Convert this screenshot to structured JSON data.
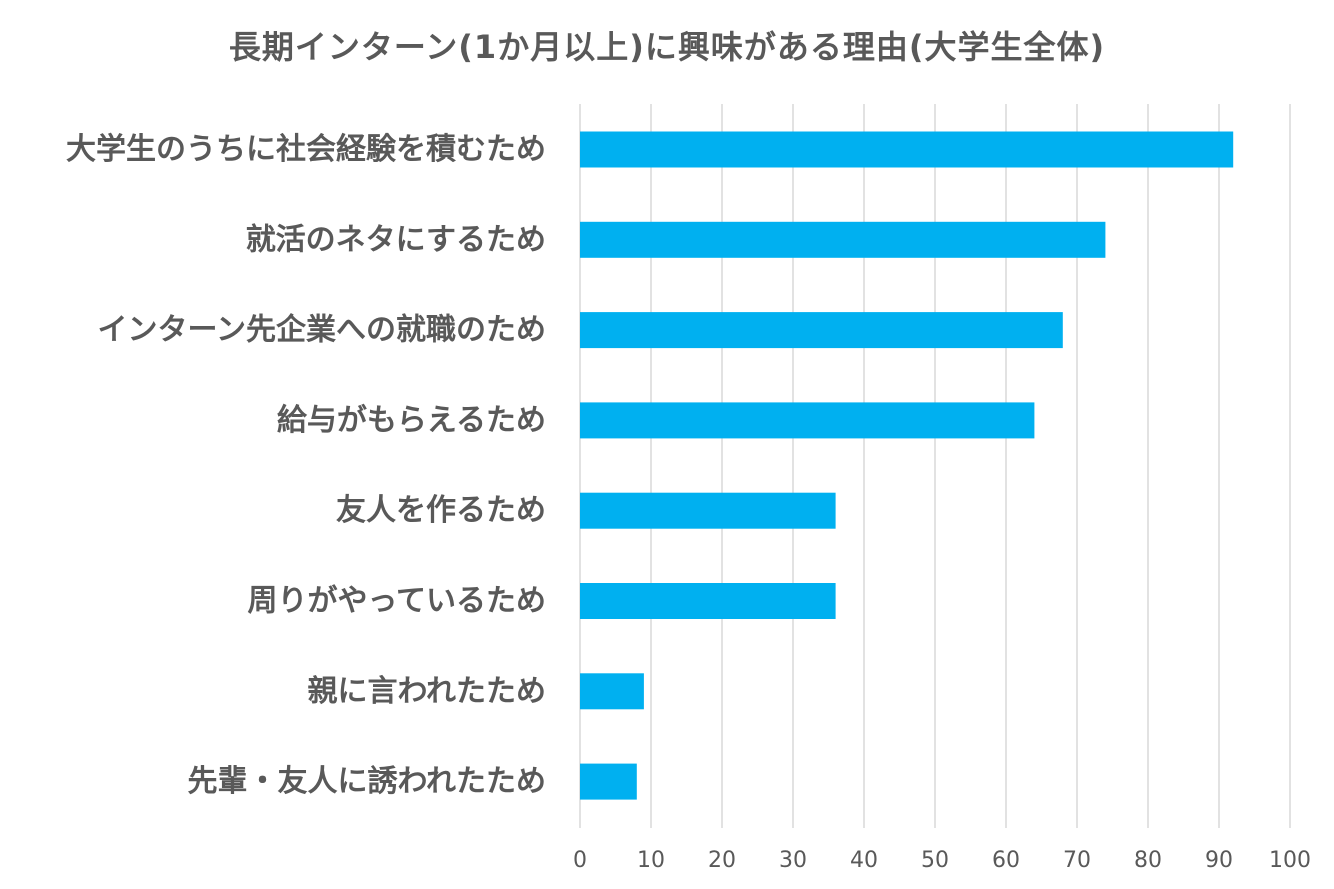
{
  "chart_data": {
    "type": "bar",
    "orientation": "horizontal",
    "title": "長期インターン(1か月以上)に興味がある理由(大学生全体)",
    "categories": [
      "大学生のうちに社会経験を積むため",
      "就活のネタにするため",
      "インターン先企業への就職のため",
      "給与がもらえるため",
      "友人を作るため",
      "周りがやっているため",
      "親に言われたため",
      "先輩・友人に誘われたため"
    ],
    "values": [
      92,
      74,
      68,
      64,
      36,
      36,
      9,
      8
    ],
    "xlim": [
      0,
      100
    ],
    "xticks": [
      "0",
      "10",
      "20",
      "30",
      "40",
      "50",
      "60",
      "70",
      "80",
      "90",
      "100"
    ],
    "grid": "vertical",
    "legend": "none",
    "colors": {
      "bar": "#00B0F0",
      "grid": "#D9D9D9",
      "text": "#595959"
    }
  }
}
